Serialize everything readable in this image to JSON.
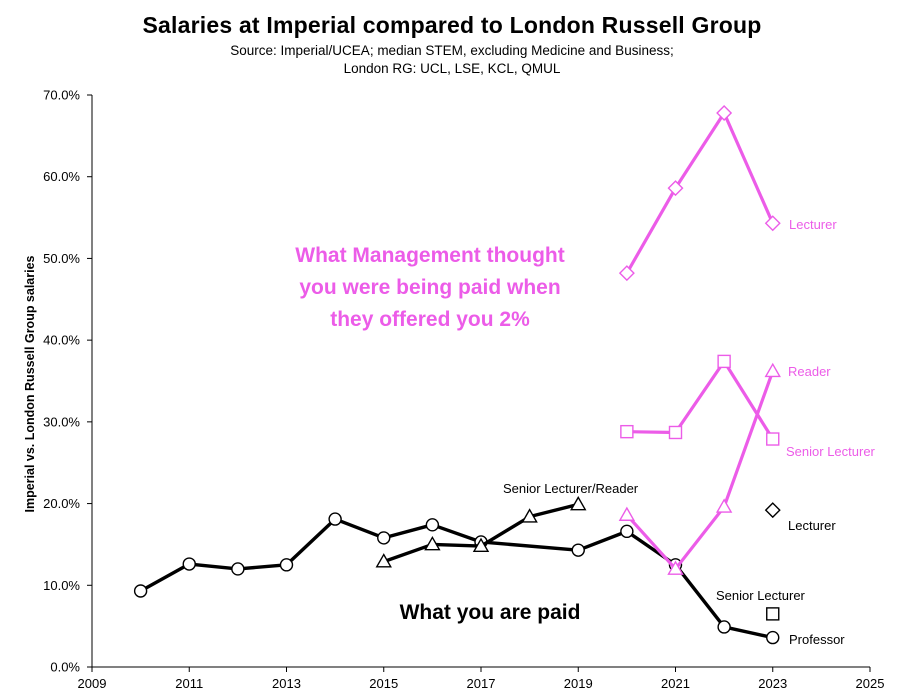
{
  "title": "Salaries at Imperial compared to London Russell Group",
  "subtitle": {
    "line1": "Source: Imperial/UCEA; median STEM, excluding Medicine and Business;",
    "line2": "London RG: UCL, LSE, KCL, QMUL"
  },
  "chart_data": {
    "type": "line",
    "ylabel": "Imperial vs. London Russell Group salaries",
    "xlabel": "",
    "xlim": [
      2009,
      2025
    ],
    "ylim": [
      0,
      70
    ],
    "x_ticks": [
      2009,
      2011,
      2013,
      2015,
      2017,
      2019,
      2021,
      2023,
      2025
    ],
    "y_ticks": [
      {
        "value": 0,
        "label": "0.0%"
      },
      {
        "value": 10,
        "label": "10.0%"
      },
      {
        "value": 20,
        "label": "20.0%"
      },
      {
        "value": 30,
        "label": "30.0%"
      },
      {
        "value": 40,
        "label": "40.0%"
      },
      {
        "value": 50,
        "label": "50.0%"
      },
      {
        "value": 60,
        "label": "60.0%"
      },
      {
        "value": 70,
        "label": "70.0%"
      }
    ],
    "series": [
      {
        "name": "Professor",
        "group": "actual",
        "color": "#000000",
        "marker": "circle",
        "x": [
          2010,
          2011,
          2012,
          2013,
          2014,
          2015,
          2016,
          2017,
          2019,
          2020,
          2021,
          2022,
          2023
        ],
        "values": [
          9.3,
          12.6,
          12.0,
          12.5,
          18.1,
          15.8,
          17.4,
          15.3,
          14.3,
          16.6,
          12.5,
          4.9,
          3.6
        ]
      },
      {
        "name": "Senior Lecturer/Reader",
        "group": "actual",
        "color": "#000000",
        "marker": "triangle",
        "x": [
          2015,
          2016,
          2017,
          2018,
          2019
        ],
        "values": [
          12.9,
          15.0,
          14.8,
          18.4,
          19.9
        ]
      },
      {
        "name": "Lecturer",
        "group": "actual",
        "color": "#000000",
        "marker": "diamond",
        "x": [
          2023
        ],
        "values": [
          19.2
        ]
      },
      {
        "name": "Senior Lecturer",
        "group": "actual",
        "color": "#000000",
        "marker": "square",
        "x": [
          2023
        ],
        "values": [
          6.5
        ]
      },
      {
        "name": "Lecturer",
        "group": "management",
        "color": "#ec5ce8",
        "marker": "diamond",
        "x": [
          2020,
          2021,
          2022,
          2023
        ],
        "values": [
          48.2,
          58.6,
          67.8,
          54.3
        ]
      },
      {
        "name": "Reader",
        "group": "management",
        "color": "#ec5ce8",
        "marker": "triangle",
        "x": [
          2020,
          2021,
          2022,
          2023
        ],
        "values": [
          18.6,
          12.0,
          19.6,
          36.2
        ]
      },
      {
        "name": "Senior Lecturer",
        "group": "management",
        "color": "#ec5ce8",
        "marker": "square",
        "x": [
          2020,
          2021,
          2022,
          2023
        ],
        "values": [
          28.8,
          28.7,
          37.4,
          27.9
        ]
      }
    ],
    "annotations": [
      {
        "text": "What Management thought",
        "kind": "headline-pink"
      },
      {
        "text": "you were being paid when",
        "kind": "headline-pink"
      },
      {
        "text": "they offered you 2%",
        "kind": "headline-pink"
      },
      {
        "text": "What you are paid",
        "kind": "headline-black"
      }
    ]
  }
}
